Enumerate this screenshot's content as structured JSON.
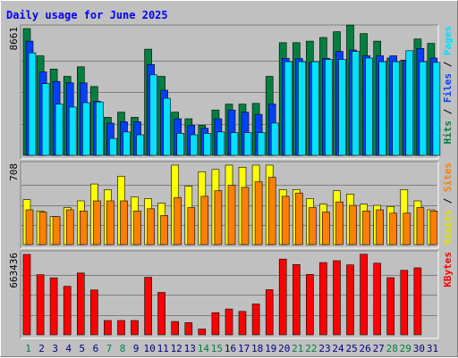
{
  "chart_data": {
    "type": "bar",
    "title": "Daily usage for June 2025",
    "title_color": "#0000ff",
    "categories": [
      "1",
      "2",
      "3",
      "4",
      "5",
      "6",
      "7",
      "8",
      "9",
      "10",
      "11",
      "12",
      "13",
      "14",
      "15",
      "16",
      "17",
      "18",
      "19",
      "20",
      "21",
      "22",
      "23",
      "24",
      "25",
      "26",
      "27",
      "28",
      "29",
      "30",
      "31"
    ],
    "weekend_days": [
      "1",
      "7",
      "8",
      "14",
      "15",
      "21",
      "22",
      "28",
      "29"
    ],
    "colors": {
      "background": "#c0c0c0",
      "hits": "#008040",
      "files": "#0040ff",
      "pages": "#00e0ff",
      "visits": "#ffff00",
      "sites": "#ff8000",
      "kbytes": "#ff0000",
      "weekend_label": "#008040",
      "weekday_label": "#000080"
    },
    "panels": [
      {
        "id": "hits-panel",
        "max_label": "8661",
        "ylim": [
          0,
          8661
        ],
        "legend": [
          {
            "text": "Hits",
            "color": "#008040"
          },
          {
            "text": " / ",
            "color": "#000000"
          },
          {
            "text": "Files",
            "color": "#0040ff"
          },
          {
            "text": " / ",
            "color": "#000000"
          },
          {
            "text": "Pages",
            "color": "#00e0ff"
          }
        ],
        "series": [
          {
            "name": "Hits",
            "color": "#008040",
            "values": [
              8661,
              6800,
              5900,
              5400,
              6050,
              4700,
              2600,
              2950,
              2600,
              7250,
              5400,
              2950,
              2500,
              2050,
              3100,
              3500,
              3500,
              3550,
              5400,
              7700,
              7700,
              7800,
              8050,
              8450,
              8900,
              8320,
              7800,
              6650,
              6500,
              7950,
              7650
            ]
          },
          {
            "name": "Files",
            "color": "#0040ff",
            "values": [
              7800,
              5700,
              5050,
              4950,
              4950,
              3700,
              2200,
              2300,
              2300,
              6200,
              4450,
              2500,
              2050,
              1850,
              2500,
              3100,
              2950,
              2800,
              3500,
              6630,
              6620,
              6350,
              6630,
              7100,
              7200,
              6800,
              6800,
              6800,
              6500,
              7300,
              6650
            ]
          },
          {
            "name": "Pages",
            "color": "#00e0ff",
            "values": [
              7000,
              4900,
              3500,
              3300,
              3600,
              3650,
              1150,
              1600,
              1400,
              5500,
              3900,
              1500,
              1400,
              1500,
              1600,
              1550,
              1550,
              1550,
              2200,
              6400,
              6400,
              6400,
              6550,
              6550,
              7100,
              6650,
              6400,
              6400,
              7150,
              6400,
              6350
            ]
          }
        ]
      },
      {
        "id": "visits-panel",
        "max_label": "708",
        "ylim": [
          0,
          708
        ],
        "legend": [
          {
            "text": "Visits",
            "color": "#e0e000"
          },
          {
            "text": " / ",
            "color": "#000000"
          },
          {
            "text": "Sites",
            "color": "#ff8000"
          }
        ],
        "series": [
          {
            "name": "Visits",
            "color": "#ffff00",
            "values": [
              400,
              300,
              250,
              330,
              390,
              540,
              490,
              610,
              425,
              410,
              370,
              708,
              520,
              650,
              670,
              708,
              690,
              708,
              708,
              490,
              490,
              410,
              360,
              480,
              450,
              360,
              350,
              340,
              490,
              390,
              310
            ]
          },
          {
            "name": "Sites",
            "color": "#ff8000",
            "values": [
              310,
              290,
              250,
              310,
              300,
              390,
              390,
              390,
              300,
              320,
              260,
              420,
              330,
              430,
              480,
              530,
              510,
              560,
              600,
              430,
              460,
              330,
              290,
              380,
              350,
              300,
              310,
              280,
              280,
              330,
              300
            ]
          }
        ]
      },
      {
        "id": "kbytes-panel",
        "max_label": "663436",
        "ylim": [
          0,
          663436
        ],
        "legend": [
          {
            "text": "KBytes",
            "color": "#ff0000"
          }
        ],
        "series": [
          {
            "name": "KBytes",
            "color": "#ff0000",
            "values": [
              663436,
              496000,
              470000,
              400000,
              510000,
              370000,
              118000,
              118000,
              118000,
              475000,
              350000,
              110000,
              100000,
              47000,
              183000,
              213000,
              193000,
              254000,
              372000,
              625000,
              580000,
              498000,
              596000,
              612000,
              577000,
              665000,
              591000,
              472000,
              532000,
              553000,
              0
            ]
          }
        ]
      }
    ]
  }
}
